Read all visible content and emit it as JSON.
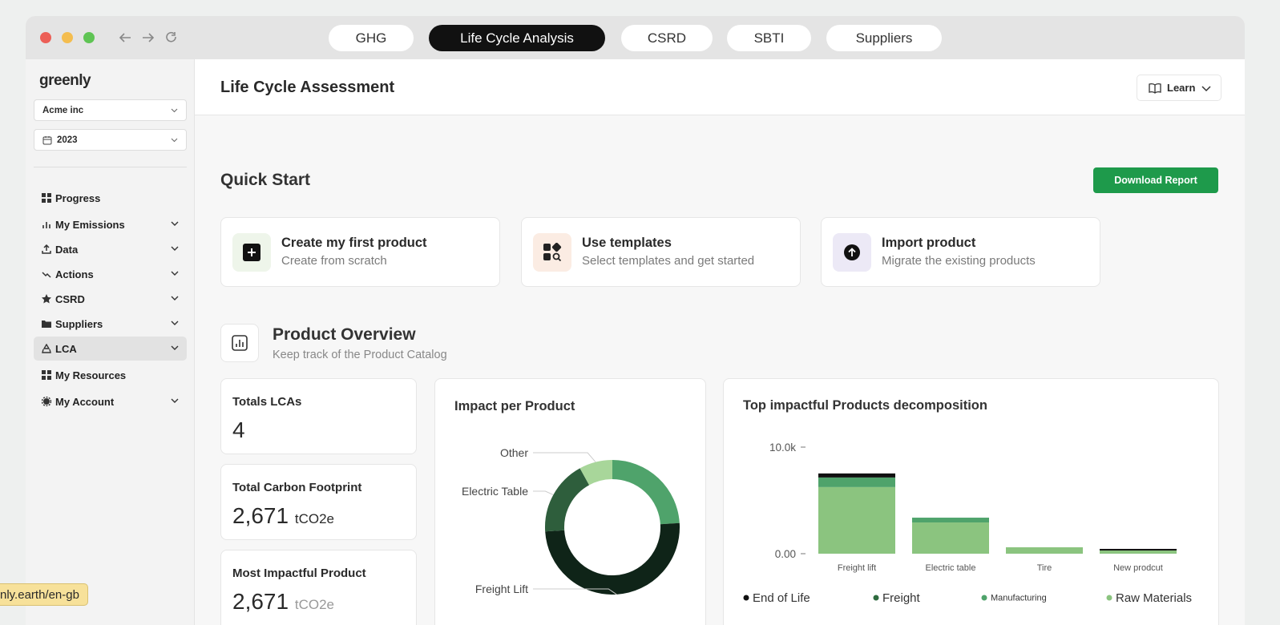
{
  "browser": {
    "tabs": [
      "GHG",
      "Life Cycle Analysis",
      "CSRD",
      "SBTI",
      "Suppliers"
    ],
    "status_url": "nly.earth/en-gb"
  },
  "sidebar": {
    "logo": "greenly",
    "organization": "Acme inc",
    "year": "2023",
    "nav": [
      "Progress",
      "My Emissions",
      "Data",
      "Actions",
      "CSRD",
      "Suppliers",
      "LCA",
      "My Resources",
      "My Account"
    ]
  },
  "header": {
    "title": "Life Cycle Assessment",
    "learn": "Learn"
  },
  "quick_start": {
    "title": "Quick Start",
    "button": "Download Report",
    "cards": [
      {
        "title": "Create my first product",
        "subtitle": "Create from scratch"
      },
      {
        "title": "Use templates",
        "subtitle": "Select templates and get started"
      },
      {
        "title": "Import product",
        "subtitle": "Migrate the existing products"
      }
    ]
  },
  "overview": {
    "title": "Product Overview",
    "subtitle": "Keep track of the Product Catalog",
    "stats": [
      {
        "label": "Totals LCAs",
        "value": "4"
      },
      {
        "label": "Total Carbon Footprint",
        "value": "2,671",
        "unit": "tCO2e"
      },
      {
        "label": "Most Impactful Product",
        "value": "2,671",
        "unit": "tCO2e"
      }
    ]
  },
  "chart_data": [
    {
      "type": "donut",
      "title": "Impact per Product",
      "categories": [
        null,
        "Freight Lift",
        "Electric Table",
        "Other"
      ],
      "values": [
        24,
        50,
        18,
        8
      ],
      "colors": [
        "#4fa36b",
        "#0f2418",
        "#2e5e3c",
        "#a8d69a"
      ]
    },
    {
      "type": "stacked_bar",
      "title": "Top impactful Products decomposition",
      "categories": [
        "Freight lift",
        "Electric table",
        "Tire",
        "New prodcut"
      ],
      "series": [
        {
          "name": "End of Life",
          "color": "#111111",
          "values": [
            380,
            0,
            0,
            150
          ]
        },
        {
          "name": "Freight",
          "color": "#2e6b3f",
          "values": [
            0,
            0,
            0,
            0
          ]
        },
        {
          "name": "Manufacturing",
          "color": "#4fa36b",
          "values": [
            900,
            450,
            0,
            0
          ]
        },
        {
          "name": "Raw Materials",
          "color": "#8bc47f",
          "values": [
            6250,
            2930,
            600,
            300
          ]
        }
      ],
      "ylim": [
        0,
        10000
      ],
      "yticks": [
        {
          "value": 0,
          "label": "0.00"
        },
        {
          "value": 10000,
          "label": "10.0k"
        }
      ]
    }
  ]
}
